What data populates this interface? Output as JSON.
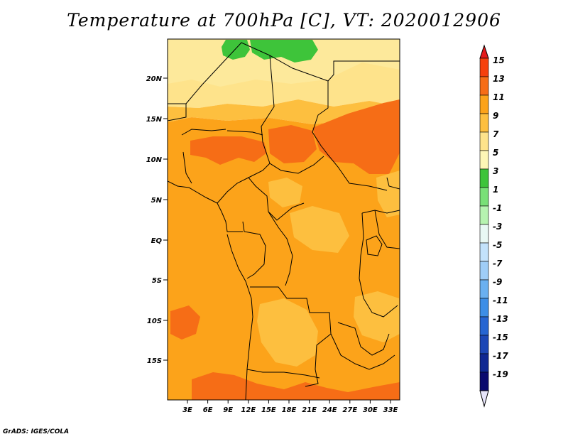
{
  "title": "Temperature at 700hPa [C], VT: 2020012906",
  "footer": "GrADS: IGES/COLA",
  "map": {
    "lat_labels": [
      "20N",
      "15N",
      "10N",
      "5N",
      "EQ",
      "5S",
      "10S",
      "15S"
    ],
    "lon_labels": [
      "3E",
      "6E",
      "9E",
      "12E",
      "15E",
      "18E",
      "21E",
      "24E",
      "27E",
      "30E",
      "33E"
    ],
    "regions": [
      {
        "fill": "#fee38b",
        "shape": "north-band"
      },
      {
        "fill": "#fde99b",
        "shape": "north-light"
      },
      {
        "fill": "#3ec43a",
        "shape": "green-a"
      },
      {
        "fill": "#3ec43a",
        "shape": "green-b"
      },
      {
        "fill": "#fdbf3f",
        "shape": "belt-15n"
      },
      {
        "fill": "#fca31a",
        "shape": "main-orange"
      },
      {
        "fill": "#f66d16",
        "shape": "sudan-dark"
      },
      {
        "fill": "#f66d16",
        "shape": "nigeria-dark"
      },
      {
        "fill": "#f66d16",
        "shape": "chad-dark"
      },
      {
        "fill": "#f66d16",
        "shape": "atlantic-dark"
      },
      {
        "fill": "#f66d16",
        "shape": "south-dark"
      },
      {
        "fill": "#fdbf3f",
        "shape": "ethiopia-light"
      },
      {
        "fill": "#fdbf3f",
        "shape": "congo-light"
      },
      {
        "fill": "#fdbf3f",
        "shape": "angola-light"
      },
      {
        "fill": "#fdbf3f",
        "shape": "cameroon-light"
      },
      {
        "fill": "#fdbf3f",
        "shape": "east-light"
      }
    ]
  },
  "colorbar": {
    "labels": [
      "15",
      "13",
      "11",
      "9",
      "7",
      "5",
      "3",
      "1",
      "-1",
      "-3",
      "-5",
      "-7",
      "-9",
      "-11",
      "-13",
      "-15",
      "-17",
      "-19"
    ],
    "colors": [
      "#e41a1a",
      "#f6400c",
      "#f66d16",
      "#fca31a",
      "#fdbf3f",
      "#fee38b",
      "#fdf6b6",
      "#3ec43a",
      "#79e077",
      "#b6f3b0",
      "#e8f8f4",
      "#c3e2fb",
      "#9fcdf7",
      "#6ab0f0",
      "#3d8ee6",
      "#2665d2",
      "#1c47b6",
      "#0f2892",
      "#0a0a6e",
      "#e6e4fa"
    ]
  }
}
